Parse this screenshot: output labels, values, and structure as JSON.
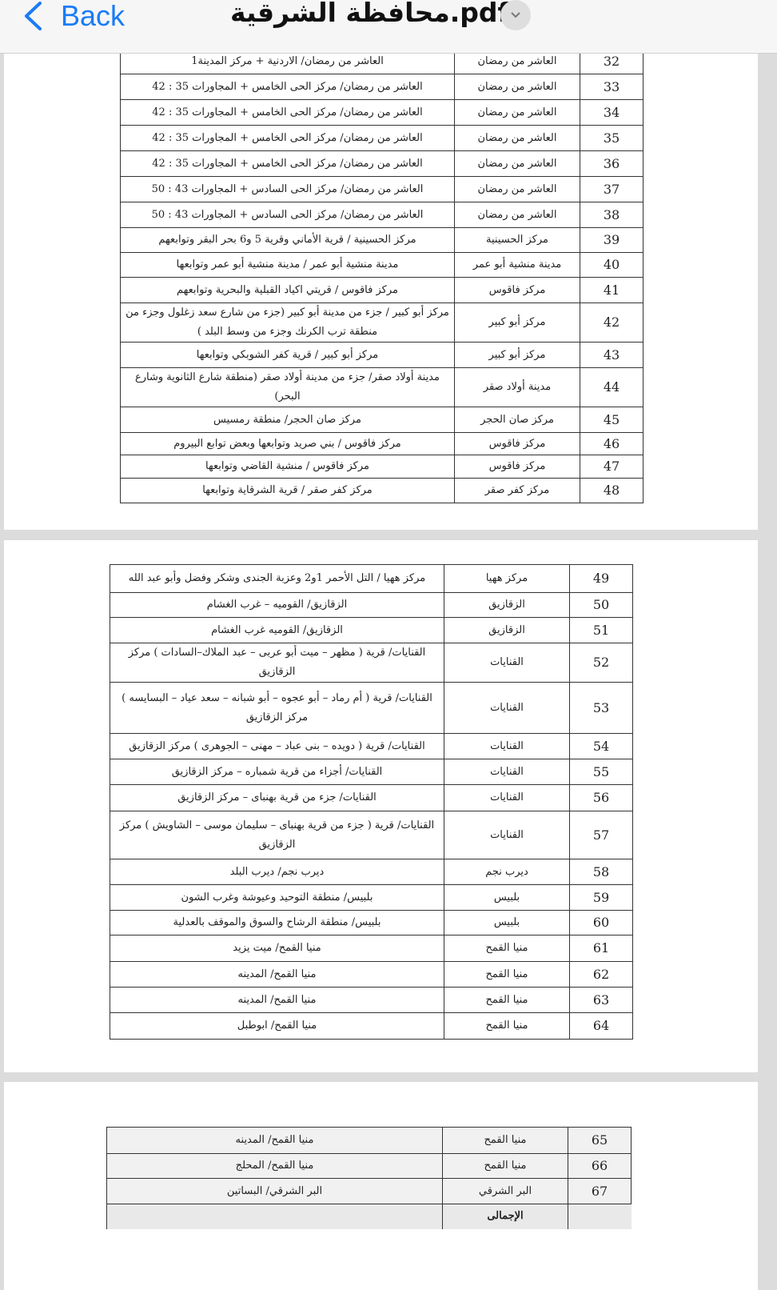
{
  "header": {
    "back_label": "Back",
    "title": "محافظة الشرقية.pdf"
  },
  "pages": [
    {
      "rows": [
        {
          "num": "32",
          "area": "العاشر من رمضان",
          "desc": "العاشر من رمضان/ الاردنية + مركز المدينة1"
        },
        {
          "num": "33",
          "area": "العاشر من رمضان",
          "desc": "العاشر من رمضان/ مركز الحى الخامس + المجاورات 35 : 42"
        },
        {
          "num": "34",
          "area": "العاشر من رمضان",
          "desc": "العاشر من رمضان/ مركز الحى الخامس + المجاورات 35 : 42"
        },
        {
          "num": "35",
          "area": "العاشر من رمضان",
          "desc": "العاشر من رمضان/ مركز الحى الخامس + المجاورات 35 : 42"
        },
        {
          "num": "36",
          "area": "العاشر من رمضان",
          "desc": "العاشر من رمضان/ مركز الحى الخامس + المجاورات 35 : 42"
        },
        {
          "num": "37",
          "area": "العاشر من رمضان",
          "desc": "العاشر من رمضان/ مركز الحى السادس + المجاورات 43 : 50"
        },
        {
          "num": "38",
          "area": "العاشر من رمضان",
          "desc": "العاشر من رمضان/ مركز الحى السادس + المجاورات 43 : 50"
        },
        {
          "num": "39",
          "area": "مركز الحسينية",
          "desc": "مركز الحسينية / قرية الأماني وقرية 5 و6 بحر البقر وتوابعهم"
        },
        {
          "num": "40",
          "area": "مدينة منشية أبو عمر",
          "desc": "مدينة منشية أبو عمر / مدينة منشية أبو عمر وتوابعها"
        },
        {
          "num": "41",
          "area": "مركز فاقوس",
          "desc": "مركز فاقوس / قريتي اكياد القبلية والبحرية وتوابعهم"
        },
        {
          "num": "42",
          "area": "مركز أبو كبير",
          "desc": "مركز أبو كبير / جزء من مدينة أبو كبير (جزء من شارع سعد زغلول وجزء من منطقة ترب الكرنك وجزء من وسط البلد )"
        },
        {
          "num": "43",
          "area": "مركز أبو كبير",
          "desc": "مركز أبو كبير / قرية كفر الشوبكي وتوابعها"
        },
        {
          "num": "44",
          "area": "مدينة أولاد صقر",
          "desc": "مدينة أولاد صقر/ جزء من مدينة أولاد صقر (منطقة شارع الثانوية وشارع البحر)"
        },
        {
          "num": "45",
          "area": "مركز صان الحجر",
          "desc": "مركز صان الحجر/ منطقة رمسيس"
        },
        {
          "num": "46",
          "area": "مركز فاقوس",
          "desc": "مركز فاقوس / بني صريد وتوابعها وبعض توابع البيروم"
        },
        {
          "num": "47",
          "area": "مركز فاقوس",
          "desc": "مركز فاقوس / منشية القاضي وتوابعها"
        },
        {
          "num": "48",
          "area": "مركز كفر صقر",
          "desc": "مركز كفر صقر / قرية الشرقاية وتوابعها"
        }
      ]
    },
    {
      "rows": [
        {
          "num": "49",
          "area": "مركز ههيا",
          "desc": "مركز ههيا / التل الأحمر 1و2 وعزبة الجندى وشكر وفضل وأبو عبد الله"
        },
        {
          "num": "50",
          "area": "الزقازيق",
          "desc": "الزقازيق/ القوميه – غرب الغشام"
        },
        {
          "num": "51",
          "area": "الزقازيق",
          "desc": "الزقازيق/ القوميه غرب الغشام"
        },
        {
          "num": "52",
          "area": "القنايات",
          "desc": "القنايات/ قرية ( مظهر – ميت أبو عربى – عبد الملاك–السادات ) مركز الزقازيق"
        },
        {
          "num": "53",
          "area": "القنايات",
          "desc": "القنايات/ قرية ( أم رماد – أبو عجوه – أبو شبانه – سعد عياد – البسايسه ) مركز الزقازيق"
        },
        {
          "num": "54",
          "area": "القنايات",
          "desc": "القنايات/ قرية ( دويده – بنى عباد – مهنى – الجوهرى ) مركز الزقازيق"
        },
        {
          "num": "55",
          "area": "القنايات",
          "desc": "القنايات/ أجزاء من قرية شمباره – مركز الزقازيق"
        },
        {
          "num": "56",
          "area": "القنايات",
          "desc": "القنايات/ جزء من قرية بهنباى – مركز الزقازيق"
        },
        {
          "num": "57",
          "area": "القنايات",
          "desc": "القنايات/ قرية ( جزء من قرية بهنباى – سليمان موسى – الشاويش ) مركز الزقازيق"
        },
        {
          "num": "58",
          "area": "ديرب نجم",
          "desc": "ديرب نجم/ ديرب البلد"
        },
        {
          "num": "59",
          "area": "بلبيس",
          "desc": "بلبيس/ منطقة التوحيد وعيوشة وغرب الشون"
        },
        {
          "num": "60",
          "area": "بلبيس",
          "desc": "بلبيس/ منطقة الرشاح والسوق والموقف بالعدلية"
        },
        {
          "num": "61",
          "area": "منيا القمح",
          "desc": "منيا القمح/ ميت يزيد"
        },
        {
          "num": "62",
          "area": "منيا القمح",
          "desc": "منيا القمح/ المدينه"
        },
        {
          "num": "63",
          "area": "منيا القمح",
          "desc": "منيا القمح/ المدينه"
        },
        {
          "num": "64",
          "area": "منيا القمح",
          "desc": "منيا القمح/ ابوطبل"
        }
      ]
    },
    {
      "rows": [
        {
          "num": "65",
          "area": "منيا القمح",
          "desc": "منيا القمح/ المدينه"
        },
        {
          "num": "66",
          "area": "منيا القمح",
          "desc": "منيا القمح/ المحلج"
        },
        {
          "num": "67",
          "area": "البر الشرقي",
          "desc": "البر الشرقي/ البساتين"
        }
      ],
      "total_label": "الإجمالى"
    }
  ]
}
